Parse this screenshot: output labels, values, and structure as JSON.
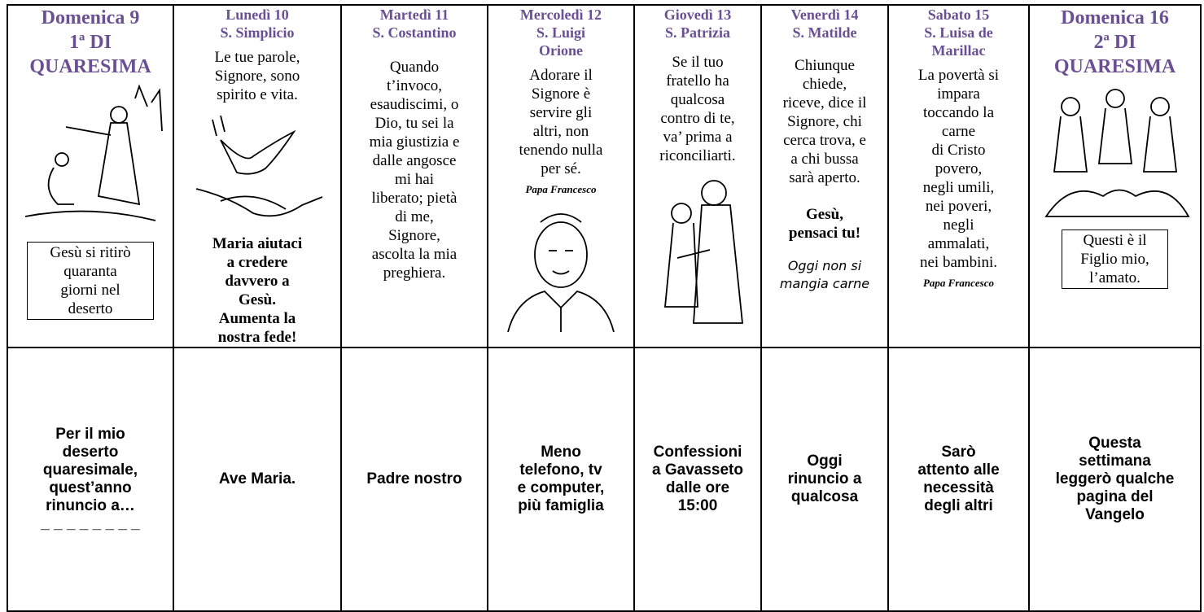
{
  "columns": [
    {
      "heading": [
        "Domenica 9",
        "1ª DI",
        "QUARESIMA"
      ],
      "box": [
        "Gesù si ritirò",
        "quaranta",
        "giorni nel",
        "deserto"
      ],
      "footer": [
        "Per il mio",
        "deserto",
        "quaresimale,",
        "quest’anno",
        "rinuncio a…",
        "_ _ _ _ _ _ _ _"
      ]
    },
    {
      "heading": [
        "Lunedì 10",
        "S. Simplicio"
      ],
      "text": [
        "Le tue parole,",
        "Signore, sono",
        "spirito e vita."
      ],
      "bold": [
        "Maria aiutaci",
        "a credere",
        "davvero a",
        "Gesù.",
        "Aumenta la",
        "nostra fede!"
      ],
      "footer": [
        "Ave Maria."
      ]
    },
    {
      "heading": [
        "Martedì 11",
        "S. Costantino"
      ],
      "text": [
        "Quando",
        "t’invoco,",
        "esaudiscimi, o",
        "Dio, tu sei la",
        "mia giustizia e",
        "dalle angosce",
        "mi hai",
        "liberato; pietà",
        "di me,",
        "Signore,",
        "ascolta la mia",
        "preghiera."
      ],
      "footer": [
        "Padre nostro"
      ]
    },
    {
      "heading": [
        "Mercoledì 12",
        "S. Luigi",
        "Orione"
      ],
      "text": [
        "Adorare il",
        "Signore è",
        "servire gli",
        "altri, non",
        "tenendo nulla",
        "per sé."
      ],
      "signature": [
        "Papa Francesco"
      ],
      "footer": [
        "Meno",
        "telefono, tv",
        "e computer,",
        "più famiglia"
      ]
    },
    {
      "heading": [
        "Giovedì 13",
        "S. Patrizia"
      ],
      "text": [
        "Se il tuo",
        "fratello ha",
        "qualcosa",
        "contro di te,",
        "va’ prima a",
        "riconciliarti."
      ],
      "footer": [
        "Confessioni",
        "a Gavasseto",
        "dalle ore",
        "15:00"
      ]
    },
    {
      "heading": [
        "Venerdì 14",
        "S. Matilde"
      ],
      "text": [
        "Chiunque",
        "chiede,",
        "riceve, dice il",
        "Signore, chi",
        "cerca trova, e",
        "a chi bussa",
        "sarà aperto."
      ],
      "bold": [
        "Gesù,",
        "pensaci tu!"
      ],
      "note": [
        "Oggi non si",
        "mangia carne"
      ],
      "footer": [
        "Oggi",
        "rinuncio a",
        "qualcosa"
      ]
    },
    {
      "heading": [
        "Sabato 15",
        "S. Luisa de",
        "Marillac"
      ],
      "text": [
        "La povertà si",
        "impara",
        "toccando la",
        "carne",
        "di Cristo",
        "povero,",
        "negli umili,",
        "nei poveri,",
        "negli",
        "ammalati,",
        "nei bambini."
      ],
      "signature": [
        "Papa Francesco"
      ],
      "footer": [
        "Sarò",
        "attento alle",
        "necessità",
        "degli altri"
      ]
    },
    {
      "heading": [
        "Domenica 16",
        "2ª  DI",
        "QUARESIMA"
      ],
      "box": [
        "Questi è il",
        "Figlio mio,",
        "l’amato."
      ],
      "footer": [
        "Questa",
        "settimana",
        "leggerò qualche",
        "pagina del",
        "Vangelo"
      ]
    }
  ]
}
